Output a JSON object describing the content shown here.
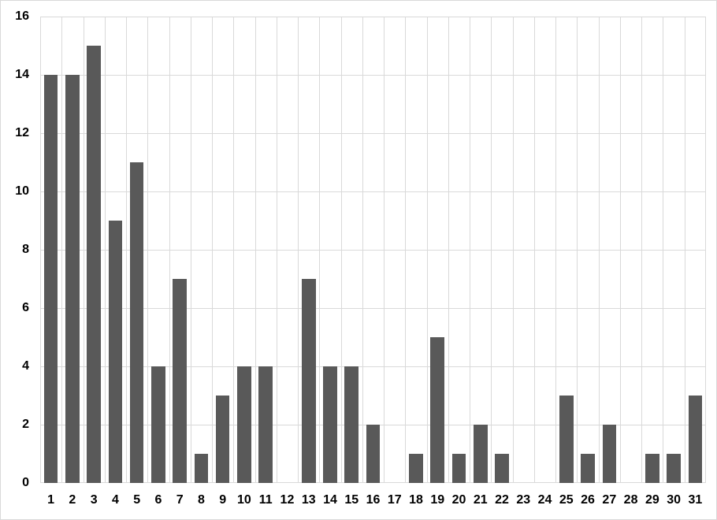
{
  "chart_data": {
    "type": "bar",
    "title": "",
    "xlabel": "",
    "ylabel": "",
    "categories": [
      "1",
      "2",
      "3",
      "4",
      "5",
      "6",
      "7",
      "8",
      "9",
      "10",
      "11",
      "12",
      "13",
      "14",
      "15",
      "16",
      "17",
      "18",
      "19",
      "20",
      "21",
      "22",
      "23",
      "24",
      "25",
      "26",
      "27",
      "28",
      "29",
      "30",
      "31"
    ],
    "values": [
      14,
      14,
      15,
      9,
      11,
      4,
      7,
      1,
      3,
      4,
      4,
      0,
      7,
      4,
      4,
      2,
      0,
      1,
      5,
      1,
      2,
      1,
      0,
      0,
      3,
      1,
      2,
      0,
      1,
      1,
      3
    ],
    "ylim": [
      0,
      16
    ],
    "yticks": [
      0,
      2,
      4,
      6,
      8,
      10,
      12,
      14,
      16
    ],
    "grid": true,
    "legend": "none",
    "bar_color": "#595959",
    "gridline_color": "#d9d9d9",
    "axis_line_color": "#d9d9d9",
    "label_color": "#000000",
    "background_color": "#ffffff",
    "border_color": "#d9d9d9"
  }
}
